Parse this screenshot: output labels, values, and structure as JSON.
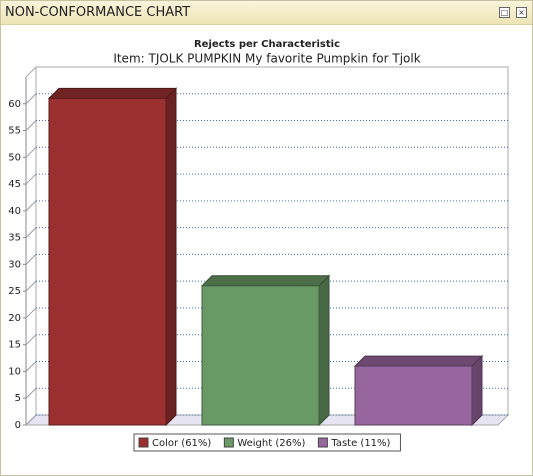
{
  "window_title": "NON-CONFORMANCE CHART",
  "chart_data": {
    "type": "bar3d",
    "title": "Rejects per Characteristic",
    "subtitle": "Item: TJOLK PUMPKIN My favorite Pumpkin for Tjolk",
    "categories": [
      null
    ],
    "series": [
      {
        "name": "Color (61%)",
        "color": "#9b3030",
        "values": [
          61
        ]
      },
      {
        "name": "Weight (26%)",
        "color": "#699a66",
        "values": [
          26
        ]
      },
      {
        "name": "Taste (11%)",
        "color": "#98669e",
        "values": [
          11
        ]
      }
    ],
    "ylim": [
      0,
      65
    ],
    "yticks": [
      0,
      5,
      10,
      15,
      20,
      25,
      30,
      35,
      40,
      45,
      50,
      55,
      60
    ],
    "grid": true,
    "legend": "bottom"
  }
}
